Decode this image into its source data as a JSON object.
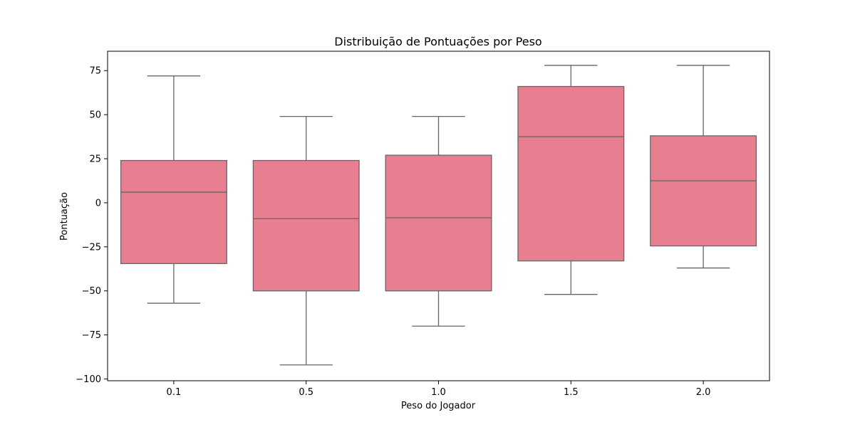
{
  "chart_data": {
    "type": "box",
    "title": "Distribuição de Pontuações por Peso",
    "xlabel": "Peso do Jogador",
    "ylabel": "Pontuação",
    "categories": [
      "0.1",
      "0.5",
      "1.0",
      "1.5",
      "2.0"
    ],
    "boxes": [
      {
        "category": "0.1",
        "whisker_low": -57,
        "q1": -34.5,
        "median": 6,
        "q3": 24,
        "whisker_high": 72
      },
      {
        "category": "0.5",
        "whisker_low": -92,
        "q1": -50,
        "median": -9,
        "q3": 24,
        "whisker_high": 49
      },
      {
        "category": "1.0",
        "whisker_low": -70,
        "q1": -50,
        "median": -8.5,
        "q3": 27,
        "whisker_high": 49
      },
      {
        "category": "1.5",
        "whisker_low": -52,
        "q1": -33,
        "median": 37.5,
        "q3": 66,
        "whisker_high": 78
      },
      {
        "category": "2.0",
        "whisker_low": -37,
        "q1": -24.5,
        "median": 12.5,
        "q3": 38,
        "whisker_high": 78
      }
    ],
    "yticks": [
      -100,
      -75,
      -50,
      -25,
      0,
      25,
      50,
      75
    ],
    "yticklabels": [
      "−100",
      "−75",
      "−50",
      "−25",
      "0",
      "25",
      "50",
      "75"
    ],
    "ylim": [
      -101,
      86
    ],
    "grid": false,
    "colors": {
      "box_fill": "#e77f91",
      "box_edge": "#666666",
      "axis": "#000000"
    }
  }
}
